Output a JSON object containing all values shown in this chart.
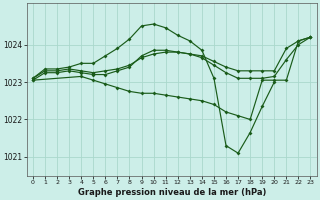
{
  "title": "Graphe pression niveau de la mer (hPa)",
  "bg_color": "#cceee8",
  "grid_color": "#aad8cc",
  "line_color": "#1a5c1a",
  "xlim": [
    -0.5,
    23.5
  ],
  "ylim": [
    1020.5,
    1025.1
  ],
  "yticks": [
    1021,
    1022,
    1023,
    1024
  ],
  "xticks": [
    0,
    1,
    2,
    3,
    4,
    5,
    6,
    7,
    8,
    9,
    10,
    11,
    12,
    13,
    14,
    15,
    16,
    17,
    18,
    19,
    20,
    21,
    22,
    23
  ],
  "series": [
    {
      "x": [
        0,
        1,
        2,
        3,
        4,
        5,
        6,
        7,
        8,
        9,
        10,
        11,
        12,
        13,
        14,
        15,
        16,
        17,
        18,
        19,
        20
      ],
      "y": [
        1023.1,
        1023.35,
        1023.35,
        1023.4,
        1023.5,
        1023.5,
        1023.7,
        1023.9,
        1024.15,
        1024.5,
        1024.55,
        1024.45,
        1024.25,
        1024.1,
        1023.85,
        1023.1,
        1021.3,
        1021.1,
        1021.65,
        1022.35,
        1023.0
      ]
    },
    {
      "x": [
        0,
        1,
        2,
        3,
        4,
        5,
        6,
        7,
        8,
        9,
        10,
        11,
        12,
        13,
        14,
        15,
        16,
        17,
        18,
        19,
        20,
        21,
        22,
        23
      ],
      "y": [
        1023.1,
        1023.3,
        1023.3,
        1023.35,
        1023.3,
        1023.25,
        1023.3,
        1023.35,
        1023.45,
        1023.65,
        1023.75,
        1023.8,
        1023.8,
        1023.75,
        1023.7,
        1023.55,
        1023.4,
        1023.3,
        1023.3,
        1023.3,
        1023.3,
        1023.9,
        1024.1,
        1024.2
      ]
    },
    {
      "x": [
        0,
        1,
        2,
        3,
        4,
        5,
        6,
        7,
        8,
        9,
        10,
        11,
        12,
        13,
        14,
        15,
        16,
        17,
        18,
        19,
        20,
        21,
        22,
        23
      ],
      "y": [
        1023.05,
        1023.25,
        1023.25,
        1023.3,
        1023.25,
        1023.2,
        1023.2,
        1023.3,
        1023.4,
        1023.7,
        1023.85,
        1023.85,
        1023.8,
        1023.75,
        1023.65,
        1023.45,
        1023.25,
        1023.1,
        1023.1,
        1023.1,
        1023.15,
        1023.6,
        1024.0,
        1024.2
      ]
    },
    {
      "x": [
        0,
        4,
        5,
        6,
        7,
        8,
        9,
        10,
        11,
        12,
        13,
        14,
        15,
        16,
        17,
        18,
        19,
        20,
        21,
        22,
        23
      ],
      "y": [
        1023.05,
        1023.15,
        1023.05,
        1022.95,
        1022.85,
        1022.75,
        1022.7,
        1022.7,
        1022.65,
        1022.6,
        1022.55,
        1022.5,
        1022.4,
        1022.2,
        1022.1,
        1022.0,
        1023.05,
        1023.05,
        1023.05,
        1024.1,
        1024.2
      ]
    }
  ]
}
